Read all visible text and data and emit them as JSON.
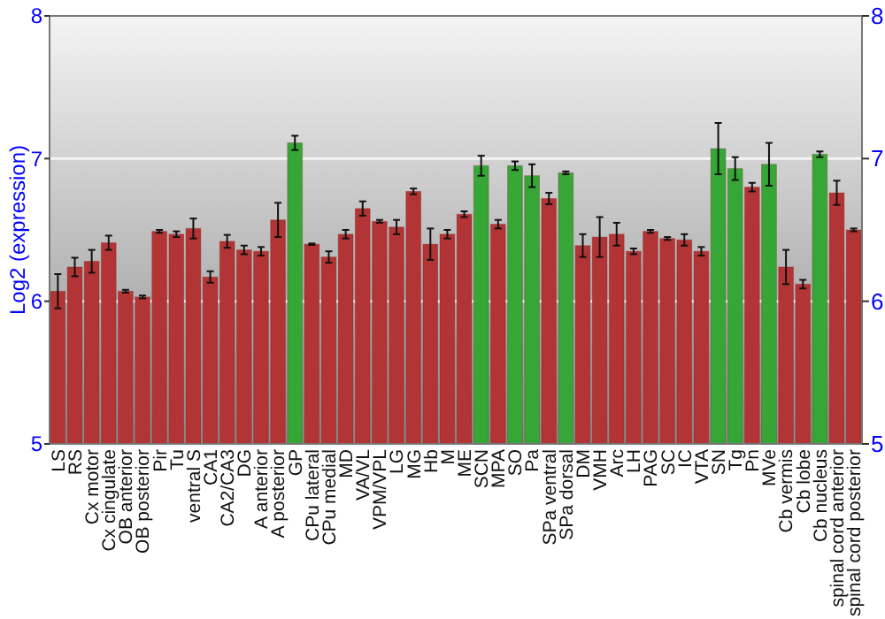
{
  "chart_data": {
    "type": "bar",
    "ylabel": "Log2 (expression)",
    "categories": [
      "LS",
      "RS",
      "Cx motor",
      "Cx cingulate",
      "OB anterior",
      "OB posterior",
      "Pir",
      "Tu",
      "ventral S",
      "CA1",
      "CA2/CA3",
      "DG",
      "A anterior",
      "A posterior",
      "GP",
      "CPu lateral",
      "CPu medial",
      "MD",
      "VA/VL",
      "VPM/VPL",
      "LG",
      "MG",
      "Hb",
      "M",
      "ME",
      "SCN",
      "MPA",
      "SO",
      "Pa",
      "SPa ventral",
      "SPa dorsal",
      "DM",
      "VMH",
      "Arc",
      "LH",
      "PAG",
      "SC",
      "IC",
      "VTA",
      "SN",
      "Tg",
      "Pn",
      "MVe",
      "Cb vermis",
      "Cb lobe",
      "Cb nucleus",
      "spinal cord anterior",
      "spinal cord posterior"
    ],
    "values": [
      6.07,
      6.24,
      6.28,
      6.41,
      6.07,
      6.03,
      6.49,
      6.47,
      6.51,
      6.17,
      6.42,
      6.36,
      6.35,
      6.57,
      7.11,
      6.4,
      6.31,
      6.47,
      6.65,
      6.56,
      6.52,
      6.77,
      6.4,
      6.47,
      6.61,
      6.95,
      6.54,
      6.95,
      6.88,
      6.72,
      6.9,
      6.39,
      6.45,
      6.47,
      6.35,
      6.49,
      6.44,
      6.43,
      6.35,
      7.07,
      6.93,
      6.8,
      6.96,
      6.24,
      6.12,
      7.03,
      6.76,
      6.5
    ],
    "errors": [
      0.12,
      0.065,
      0.08,
      0.05,
      0.01,
      0.01,
      0.01,
      0.02,
      0.07,
      0.04,
      0.045,
      0.03,
      0.03,
      0.12,
      0.05,
      0.005,
      0.04,
      0.03,
      0.05,
      0.01,
      0.05,
      0.02,
      0.11,
      0.03,
      0.02,
      0.07,
      0.03,
      0.03,
      0.08,
      0.04,
      0.01,
      0.08,
      0.14,
      0.08,
      0.02,
      0.01,
      0.01,
      0.04,
      0.03,
      0.18,
      0.08,
      0.03,
      0.15,
      0.12,
      0.03,
      0.02,
      0.085,
      0.01
    ],
    "colors": [
      "#b23434",
      "#b23434",
      "#b23434",
      "#b23434",
      "#b23434",
      "#b23434",
      "#b23434",
      "#b23434",
      "#b23434",
      "#b23434",
      "#b23434",
      "#b23434",
      "#b23434",
      "#b23434",
      "#36a636",
      "#b23434",
      "#b23434",
      "#b23434",
      "#b23434",
      "#b23434",
      "#b23434",
      "#b23434",
      "#b23434",
      "#b23434",
      "#b23434",
      "#36a636",
      "#b23434",
      "#36a636",
      "#36a636",
      "#b23434",
      "#36a636",
      "#b23434",
      "#b23434",
      "#b23434",
      "#b23434",
      "#b23434",
      "#b23434",
      "#b23434",
      "#b23434",
      "#36a636",
      "#36a636",
      "#b23434",
      "#36a636",
      "#b23434",
      "#b23434",
      "#36a636",
      "#b23434",
      "#b23434"
    ],
    "ylim": [
      5,
      8
    ],
    "yticks": [
      5,
      6,
      7,
      8
    ],
    "y2lim": [
      5,
      8
    ],
    "y2ticks": [
      5,
      6,
      7,
      8
    ],
    "grid": "y"
  }
}
